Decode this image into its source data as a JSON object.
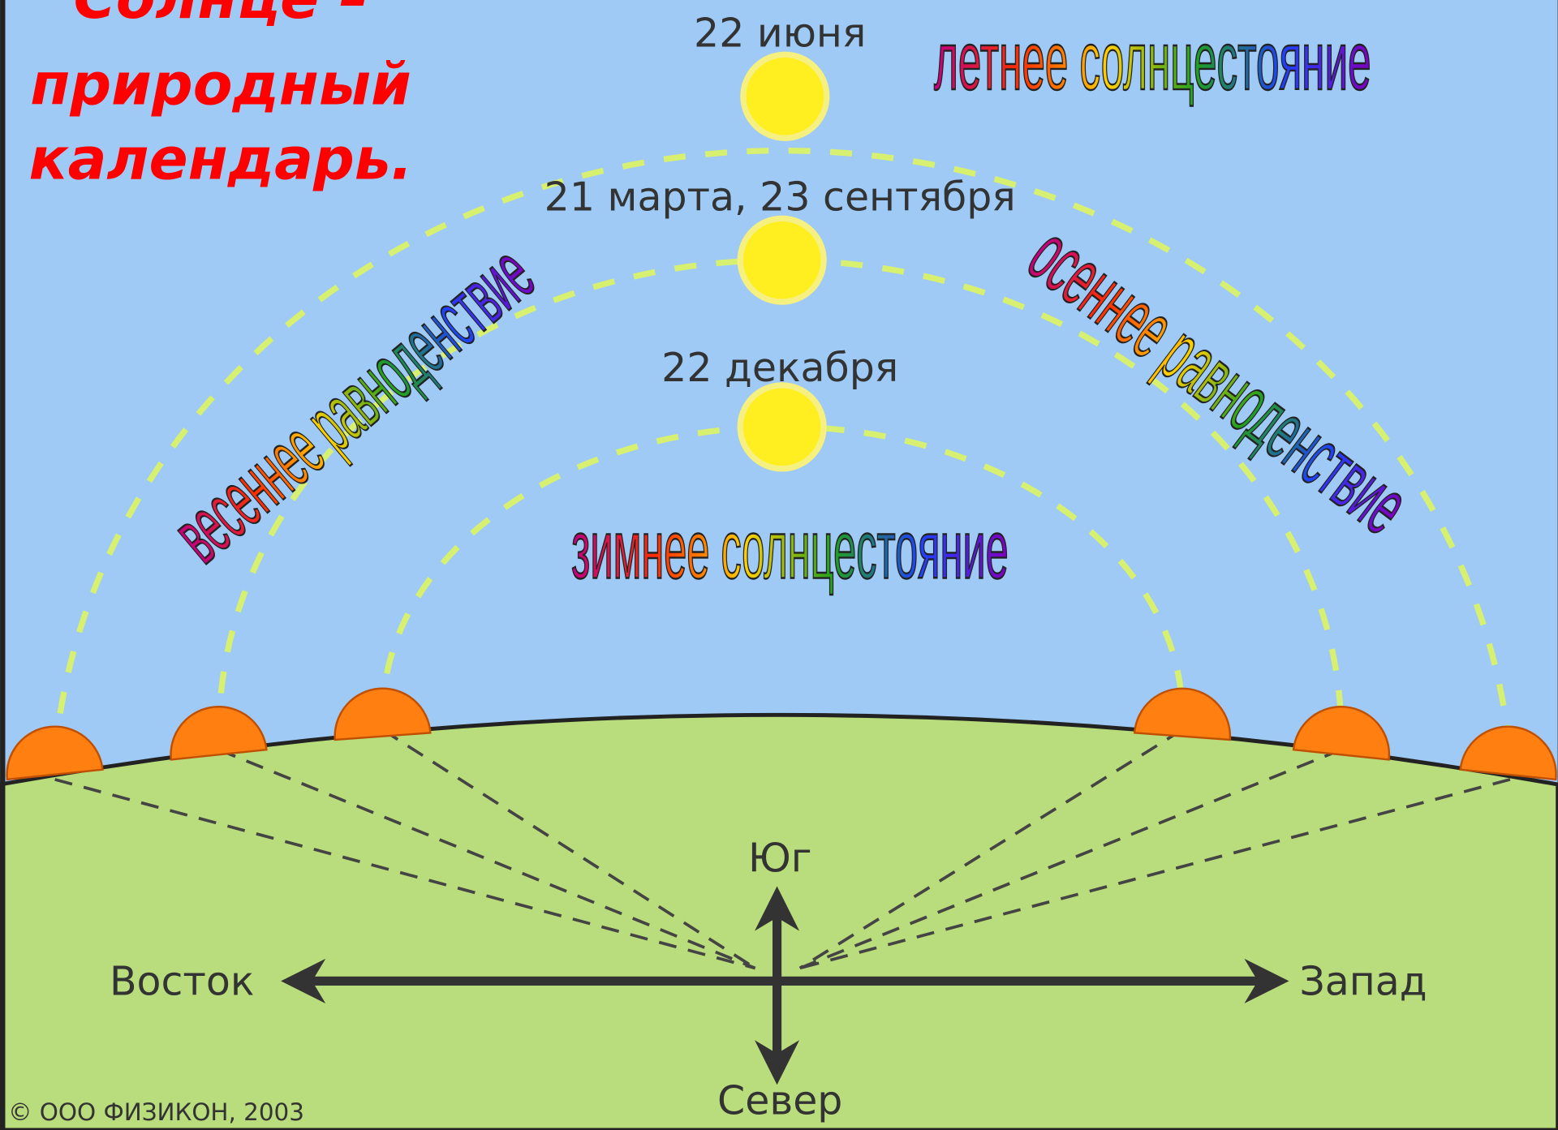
{
  "title": [
    "Солнце –",
    "природный",
    "календарь."
  ],
  "dates": [
    "22 июня",
    "21 марта, 23 сентября",
    "22 декабря"
  ],
  "seasons": {
    "summer": "летнее солнцестояние",
    "spring": "весеннее равноденствие",
    "autumn": "осеннее равноденствие",
    "winter": "зимнее солнцестояние"
  },
  "directions": {
    "south": "Юг",
    "east": "Восток",
    "west": "Запад",
    "north": "Север"
  },
  "copyright": "© ООО ФИЗИКОН, 2003"
}
